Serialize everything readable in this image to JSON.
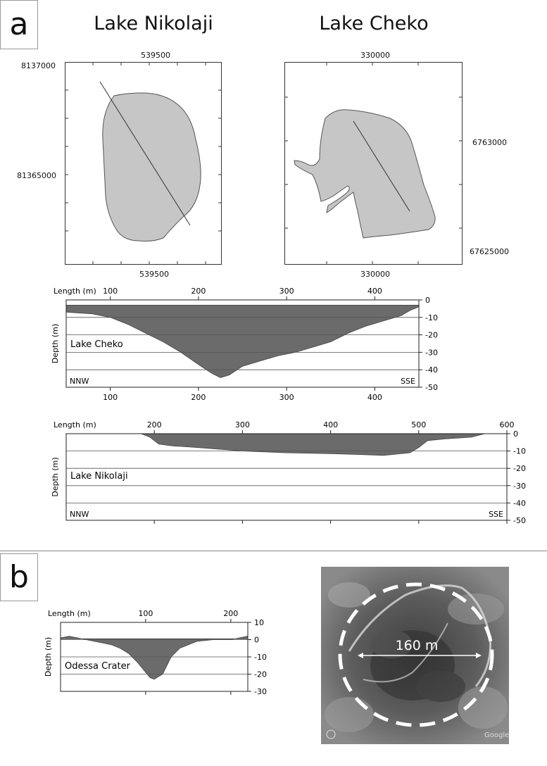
{
  "panels": {
    "a": "a",
    "b": "b"
  },
  "maps": [
    {
      "title": "Lake Nikolaji",
      "top_x_tick": "539500",
      "bottom_x_tick": "539500",
      "y_ticks": [
        "8137000",
        "81365000"
      ]
    },
    {
      "title": "Lake Cheko",
      "top_x_tick": "330000",
      "bottom_x_tick": "330000",
      "y_ticks": [
        "6763000",
        "67625000"
      ]
    }
  ],
  "photo": {
    "scale_label": "160 m",
    "watermark": "Google"
  },
  "colors": {
    "profile_fill": "#6b6b6b",
    "lake_fill": "#c6c6c6",
    "gridline": "#555555"
  },
  "chart_data": [
    {
      "type": "area",
      "name": "Lake Cheko",
      "label": "Lake Cheko",
      "xlabel": "Length (m)",
      "ylabel": "Depth (m)",
      "left_dir": "NNW",
      "right_dir": "SSE",
      "xlim": [
        50,
        450
      ],
      "ylim": [
        -50,
        0
      ],
      "x_ticks": [
        100,
        200,
        300,
        400
      ],
      "y_ticks": [
        0,
        -10,
        -20,
        -30,
        -40,
        -50
      ],
      "grid": true,
      "x": [
        50,
        80,
        100,
        120,
        140,
        160,
        180,
        200,
        215,
        225,
        235,
        250,
        270,
        290,
        310,
        330,
        350,
        370,
        390,
        410,
        430,
        440,
        450
      ],
      "y": [
        -7,
        -8,
        -10,
        -14,
        -19,
        -24,
        -30,
        -37,
        -42,
        -44.5,
        -43,
        -38,
        -35,
        -32,
        -30,
        -27,
        -24,
        -19,
        -15,
        -12,
        -9,
        -6,
        -4
      ]
    },
    {
      "type": "area",
      "name": "Lake Nikolaji",
      "label": "Lake Nikolaji",
      "xlabel": "Length (m)",
      "ylabel": "Depth (m)",
      "left_dir": "NNW",
      "right_dir": "SSE",
      "xlim": [
        100,
        600
      ],
      "ylim": [
        -50,
        0
      ],
      "x_ticks": [
        200,
        300,
        400,
        500,
        600
      ],
      "y_ticks": [
        0,
        -10,
        -20,
        -30,
        -40,
        -50
      ],
      "grid": true,
      "x": [
        100,
        185,
        195,
        205,
        220,
        250,
        300,
        350,
        400,
        430,
        460,
        490,
        500,
        510,
        530,
        560,
        575,
        600
      ],
      "y": [
        0,
        0,
        -2,
        -6,
        -7,
        -8,
        -10,
        -11,
        -11.5,
        -12,
        -12.5,
        -11,
        -8,
        -4,
        -3,
        -2,
        0,
        0
      ]
    },
    {
      "type": "area",
      "name": "Odessa Crater",
      "label": "Odessa Crater",
      "xlabel": "Length (m)",
      "ylabel": "Depth (m)",
      "xlim": [
        0,
        220
      ],
      "ylim": [
        -30,
        10
      ],
      "x_ticks": [
        100,
        200
      ],
      "y_ticks": [
        10,
        0,
        -10,
        -20,
        -30
      ],
      "grid": true,
      "x": [
        0,
        10,
        20,
        30,
        40,
        50,
        60,
        70,
        80,
        90,
        100,
        105,
        110,
        120,
        130,
        140,
        150,
        160,
        180,
        200,
        210,
        220
      ],
      "y": [
        1,
        2,
        1,
        0,
        -1,
        -2,
        -3,
        -5,
        -8,
        -13,
        -19,
        -22,
        -23,
        -20,
        -10,
        -5,
        -3,
        -1,
        0,
        0,
        1,
        2
      ]
    }
  ]
}
